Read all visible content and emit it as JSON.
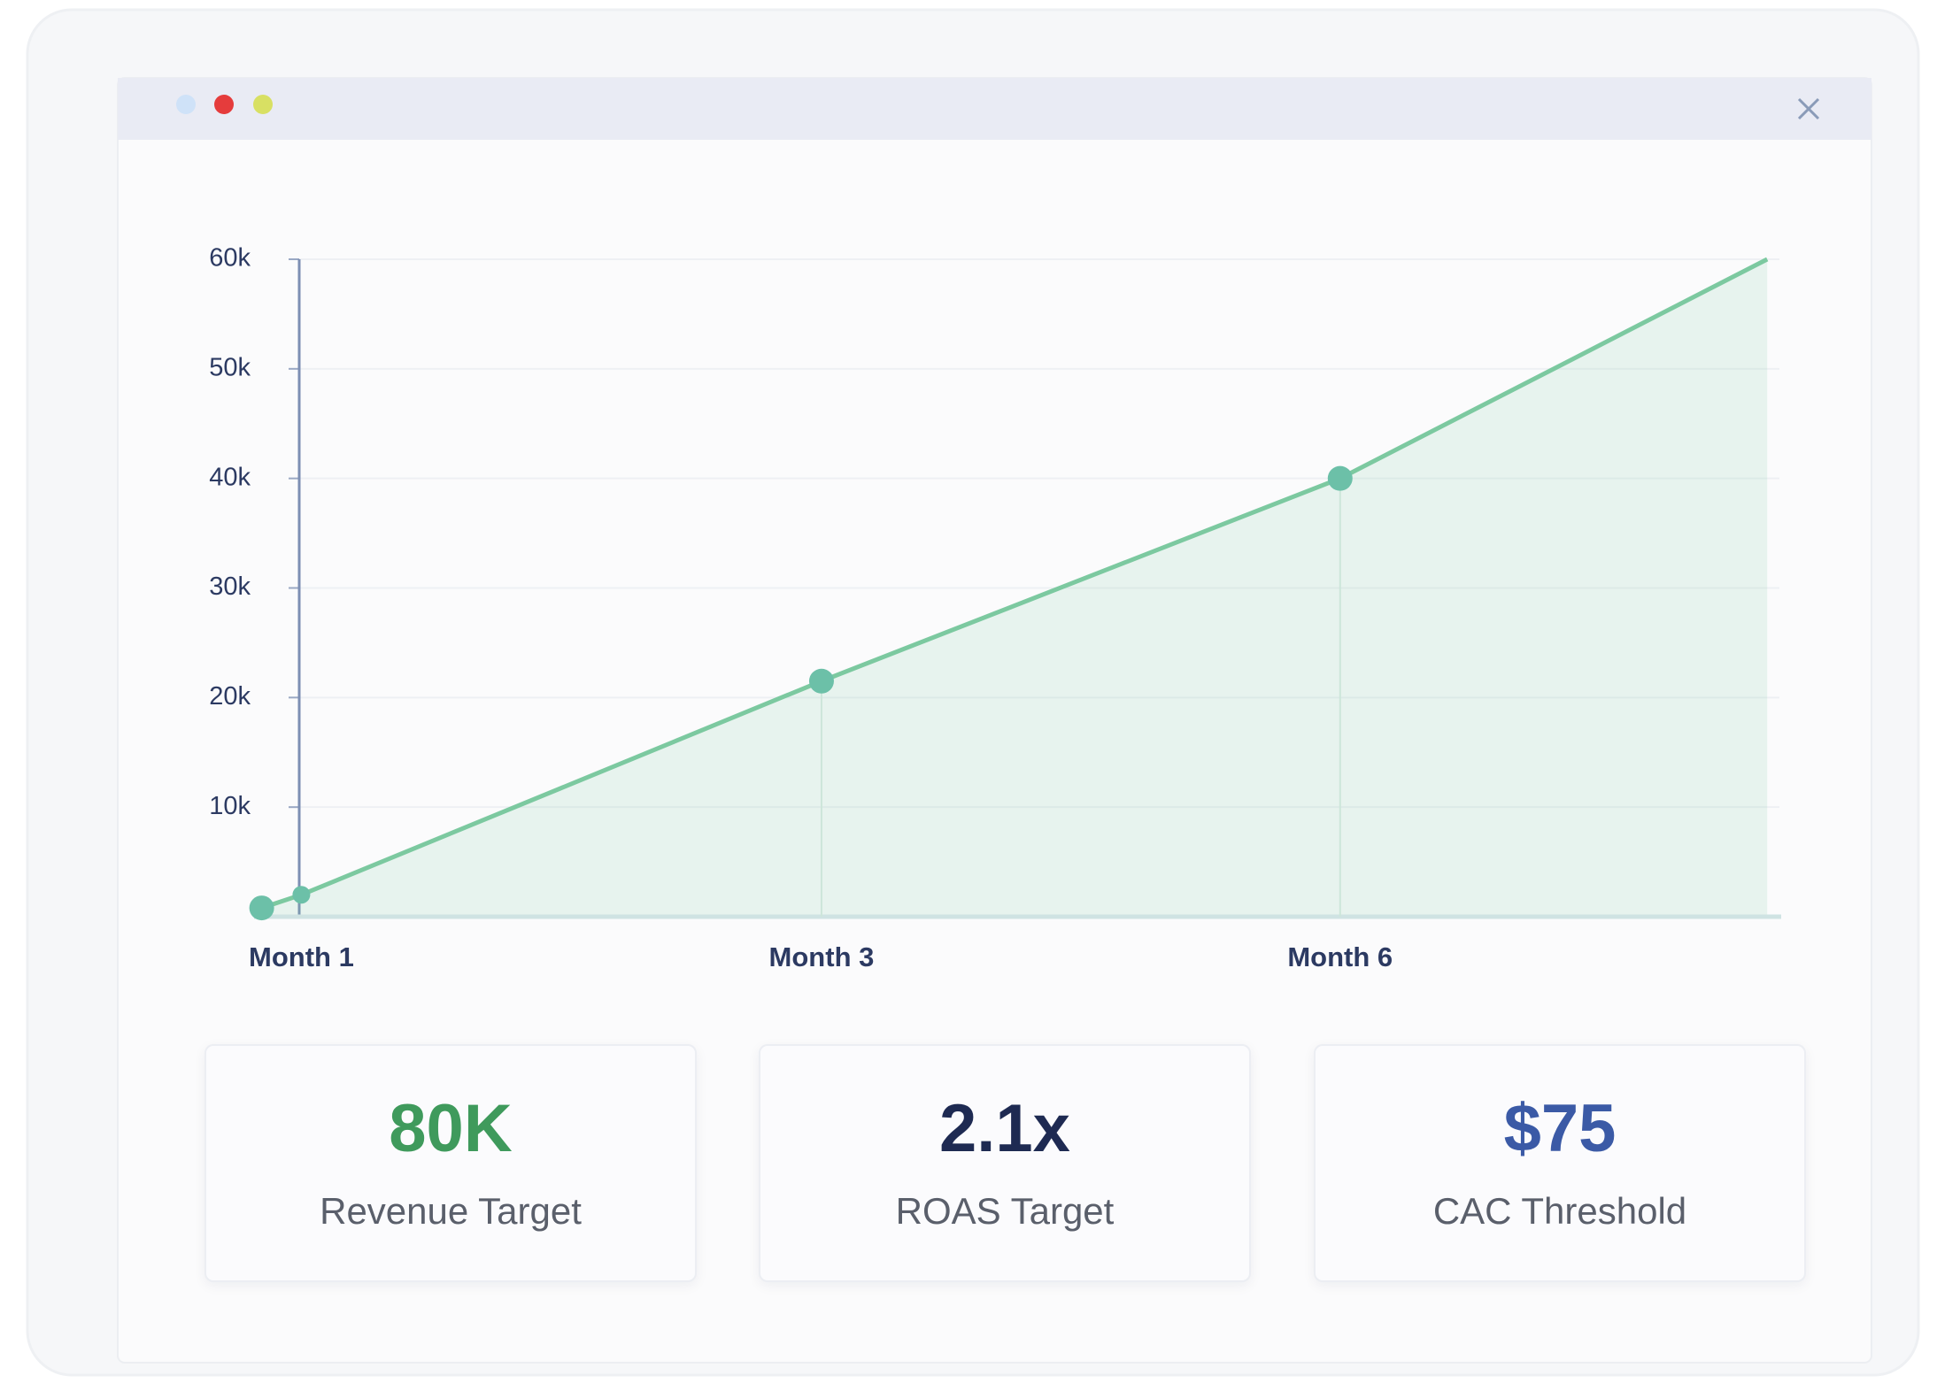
{
  "chart_data": {
    "type": "line",
    "x": [
      0.05,
      0.31,
      3.72,
      7.12,
      9.92
    ],
    "values": [
      800,
      2000,
      21500,
      40000,
      60000
    ],
    "color": "#7cc9a0",
    "xlim": [
      0,
      10
    ],
    "xticks": [
      {
        "value": 0.31,
        "label": "Month 1"
      },
      {
        "value": 3.72,
        "label": "Month 3"
      },
      {
        "value": 7.12,
        "label": "Month 6"
      }
    ],
    "ylim": [
      0,
      60000
    ],
    "yticks": [
      {
        "value": 10000,
        "label": "10k"
      },
      {
        "value": 20000,
        "label": "20k"
      },
      {
        "value": 30000,
        "label": "30k"
      },
      {
        "value": 40000,
        "label": "40k"
      },
      {
        "value": 50000,
        "label": "50k"
      },
      {
        "value": 60000,
        "label": "60k"
      }
    ],
    "grid": true
  },
  "kpis": [
    {
      "value": "80K",
      "label": "Revenue Target",
      "color": "#3f9a5c"
    },
    {
      "value": "2.1x",
      "label": "ROAS Target",
      "color": "#1e2a52"
    },
    {
      "value": "$75",
      "label": "CAC Threshold",
      "color": "#3b5aa6"
    }
  ]
}
